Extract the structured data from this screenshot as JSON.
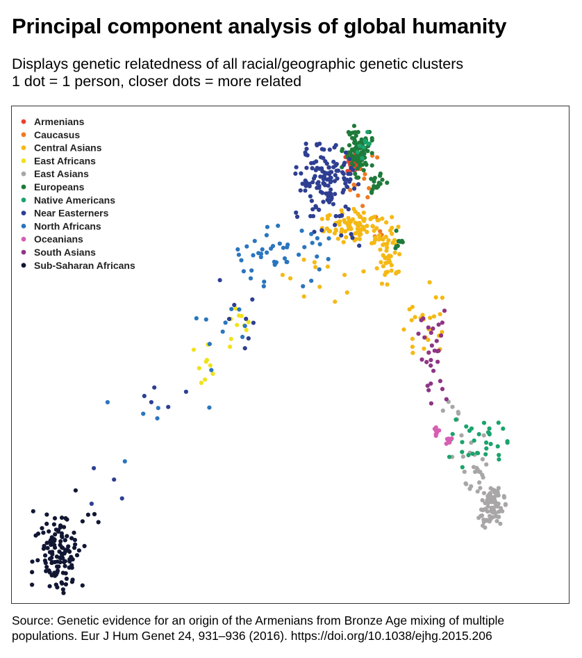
{
  "title": "Principal component analysis of global humanity",
  "subtitle_lines": [
    "Displays genetic relatedness of all racial/geographic genetic clusters",
    "1 dot = 1 person, closer dots = more related"
  ],
  "source_lines": [
    "Source: Genetic evidence for an origin of the Armenians from Bronze Age mixing of multiple",
    "populations. Eur J Hum Genet 24, 931–936 (2016). https://doi.org/10.1038/ejhg.2015.206"
  ],
  "chart_data": {
    "type": "scatter",
    "title": "",
    "xlabel": "",
    "ylabel": "",
    "xlim": [
      0,
      100
    ],
    "ylim": [
      0,
      100
    ],
    "grid": false,
    "axes_visible": false,
    "legend_position": "top-left",
    "series": [
      {
        "name": "Armenians",
        "color": "#e8432b",
        "clusters": [
          {
            "cx": 61.6,
            "cy": 90.4,
            "sx": 0.7,
            "sy": 1.0,
            "n": 40
          }
        ]
      },
      {
        "name": "Caucasus",
        "color": "#ee7a22",
        "clusters": [
          {
            "cx": 63.5,
            "cy": 85.0,
            "sx": 1.4,
            "sy": 3.5,
            "n": 14
          },
          {
            "cx": 67.0,
            "cy": 77.0,
            "sx": 0.8,
            "sy": 1.2,
            "n": 4
          }
        ]
      },
      {
        "name": "Central Asians",
        "color": "#f5b915",
        "clusters": [
          {
            "cx": 62.5,
            "cy": 77.0,
            "sx": 3.0,
            "sy": 1.8,
            "n": 90
          },
          {
            "cx": 68.5,
            "cy": 71.0,
            "sx": 1.3,
            "sy": 3.0,
            "n": 40
          },
          {
            "cx": 58.0,
            "cy": 68.0,
            "sx": 6.0,
            "sy": 3.5,
            "n": 12
          },
          {
            "cx": 75.0,
            "cy": 56.0,
            "sx": 1.8,
            "sy": 5.0,
            "n": 26
          }
        ]
      },
      {
        "name": "East Africans",
        "color": "#f0e21a",
        "clusters": [
          {
            "cx": 40.0,
            "cy": 58.0,
            "sx": 1.0,
            "sy": 1.5,
            "n": 8
          },
          {
            "cx": 33.0,
            "cy": 46.5,
            "sx": 1.0,
            "sy": 1.6,
            "n": 6
          },
          {
            "cx": 35.5,
            "cy": 52.0,
            "sx": 2.0,
            "sy": 3.0,
            "n": 5
          }
        ]
      },
      {
        "name": "East Asians",
        "color": "#a8a6a6",
        "clusters": [
          {
            "cx": 88.0,
            "cy": 17.5,
            "sx": 1.2,
            "sy": 2.0,
            "n": 80
          },
          {
            "cx": 84.5,
            "cy": 25.0,
            "sx": 1.8,
            "sy": 3.5,
            "n": 25
          },
          {
            "cx": 80.5,
            "cy": 38.0,
            "sx": 1.2,
            "sy": 1.6,
            "n": 6
          }
        ]
      },
      {
        "name": "Europeans",
        "color": "#1f7a3a",
        "clusters": [
          {
            "cx": 62.5,
            "cy": 93.0,
            "sx": 1.3,
            "sy": 2.5,
            "n": 90
          },
          {
            "cx": 66.0,
            "cy": 86.0,
            "sx": 1.0,
            "sy": 1.3,
            "n": 20
          },
          {
            "cx": 70.5,
            "cy": 74.0,
            "sx": 0.6,
            "sy": 1.0,
            "n": 10
          }
        ]
      },
      {
        "name": "Native Americans",
        "color": "#1ba36c",
        "clusters": [
          {
            "cx": 64.0,
            "cy": 94.5,
            "sx": 1.0,
            "sy": 1.3,
            "n": 10
          },
          {
            "cx": 85.5,
            "cy": 31.0,
            "sx": 2.5,
            "sy": 2.3,
            "n": 32
          }
        ]
      },
      {
        "name": "Near Easterners",
        "color": "#2e3f92",
        "clusters": [
          {
            "cx": 57.0,
            "cy": 87.0,
            "sx": 2.8,
            "sy": 3.5,
            "n": 130
          },
          {
            "cx": 54.5,
            "cy": 76.0,
            "sx": 4.0,
            "sy": 2.5,
            "n": 12
          },
          {
            "cx": 40.0,
            "cy": 58.0,
            "sx": 3.5,
            "sy": 3.5,
            "n": 8
          },
          {
            "cx": 25.0,
            "cy": 40.0,
            "sx": 3.5,
            "sy": 2.0,
            "n": 5
          },
          {
            "cx": 15.0,
            "cy": 21.0,
            "sx": 2.5,
            "sy": 2.5,
            "n": 4
          }
        ]
      },
      {
        "name": "North Africans",
        "color": "#2a76be",
        "clusters": [
          {
            "cx": 47.0,
            "cy": 71.0,
            "sx": 5.0,
            "sy": 3.0,
            "n": 45
          },
          {
            "cx": 37.0,
            "cy": 56.0,
            "sx": 5.0,
            "sy": 5.0,
            "n": 10
          },
          {
            "cx": 25.0,
            "cy": 39.0,
            "sx": 4.5,
            "sy": 3.0,
            "n": 5
          },
          {
            "cx": 19.5,
            "cy": 28.5,
            "sx": 0.6,
            "sy": 0.6,
            "n": 1
          }
        ]
      },
      {
        "name": "Oceanians",
        "color": "#d75fb2",
        "clusters": [
          {
            "cx": 77.5,
            "cy": 33.5,
            "sx": 0.3,
            "sy": 0.4,
            "n": 9
          },
          {
            "cx": 80.0,
            "cy": 31.5,
            "sx": 0.3,
            "sy": 0.4,
            "n": 8
          }
        ]
      },
      {
        "name": "South Asians",
        "color": "#8e3584",
        "clusters": [
          {
            "cx": 77.0,
            "cy": 50.5,
            "sx": 1.3,
            "sy": 5.0,
            "n": 30
          }
        ]
      },
      {
        "name": "Sub-Saharan Africans",
        "color": "#111733",
        "clusters": [
          {
            "cx": 6.0,
            "cy": 8.0,
            "sx": 2.3,
            "sy": 4.0,
            "n": 120
          },
          {
            "cx": 12.0,
            "cy": 15.5,
            "sx": 2.5,
            "sy": 2.5,
            "n": 6
          }
        ]
      }
    ]
  }
}
